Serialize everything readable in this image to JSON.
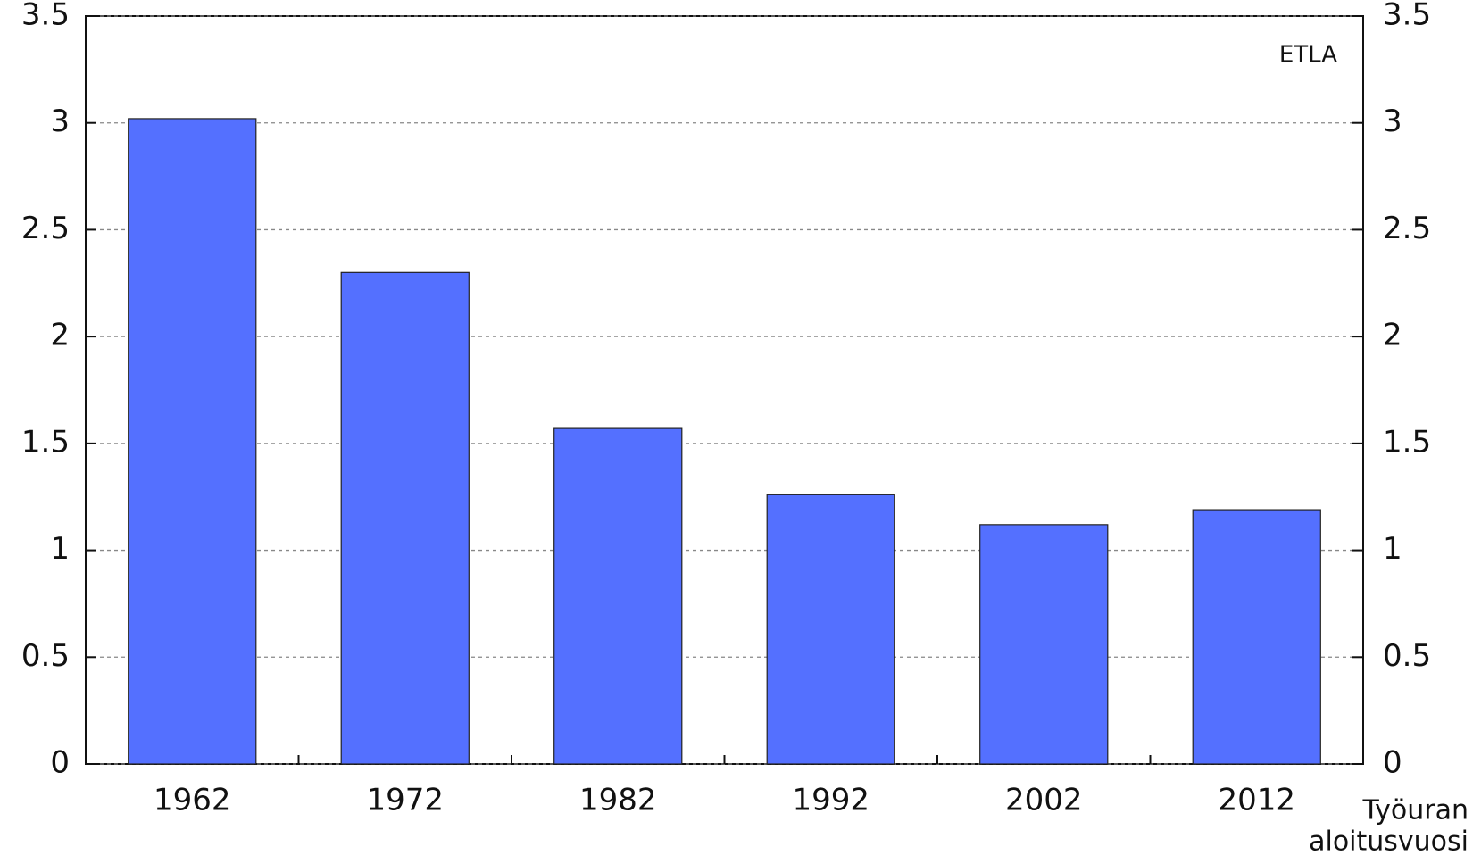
{
  "chart_data": {
    "type": "bar",
    "annotation": "ETLA",
    "x_label": [
      "Työuran",
      "aloitusvuosi"
    ],
    "categories": [
      "1962",
      "1972",
      "1982",
      "1992",
      "2002",
      "2012"
    ],
    "values": [
      3.02,
      2.3,
      1.57,
      1.26,
      1.12,
      1.19
    ],
    "color": "#5470ff",
    "ylim": [
      0,
      3.5
    ],
    "yticks": [
      0,
      0.5,
      1,
      1.5,
      2,
      2.5,
      3,
      3.5
    ],
    "y2lim": [
      0,
      3.5
    ],
    "y2ticks": [
      0,
      0.5,
      1,
      1.5,
      2,
      2.5,
      3,
      3.5
    ],
    "grid": true
  }
}
